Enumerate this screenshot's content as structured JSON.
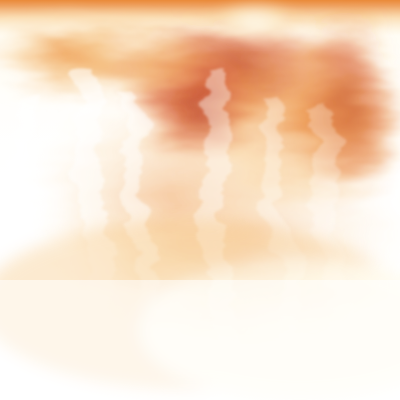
{
  "image": {
    "kind": "abstract flame-like field (procedural), no visible text",
    "palette": {
      "white": "#ffffff",
      "pale_yellow": "#fff6d6",
      "light_orange": "#f7c47a",
      "orange": "#e9842e",
      "red_orange": "#d9531a",
      "deep_red": "#b1250f"
    }
  }
}
